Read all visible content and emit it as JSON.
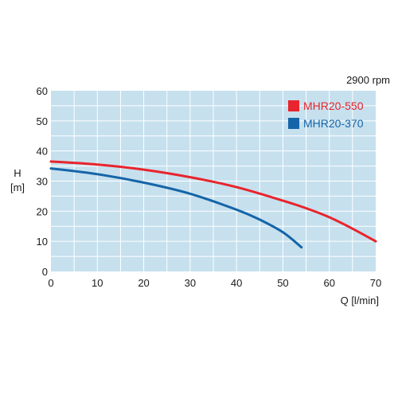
{
  "chart_data": {
    "type": "line",
    "annotation": "2900 rpm",
    "ylabel_lines": [
      "H",
      "[m]"
    ],
    "xlabel": "Q [l/min]",
    "xlim": [
      0,
      70
    ],
    "ylim": [
      0,
      60
    ],
    "xticks": [
      0,
      10,
      20,
      30,
      40,
      50,
      60,
      70
    ],
    "yticks": [
      0,
      10,
      20,
      30,
      40,
      50,
      60
    ],
    "grid": true,
    "grid_minor_x_step": 5,
    "grid_minor_y_step": 5,
    "background_color": "#c6e0ee",
    "legend_position": "top-right",
    "series": [
      {
        "name": "MHR20-550",
        "color": "#e8242c",
        "x": [
          0,
          10,
          20,
          30,
          40,
          50,
          55,
          60,
          65,
          70
        ],
        "y": [
          36.5,
          35.5,
          33.8,
          31.3,
          28,
          23.5,
          21,
          18,
          14.2,
          10
        ]
      },
      {
        "name": "MHR20-370",
        "color": "#1565a8",
        "x": [
          0,
          10,
          20,
          30,
          40,
          45,
          50,
          54
        ],
        "y": [
          34.2,
          32.3,
          29.5,
          25.8,
          20.5,
          17.2,
          13,
          8
        ]
      }
    ]
  }
}
